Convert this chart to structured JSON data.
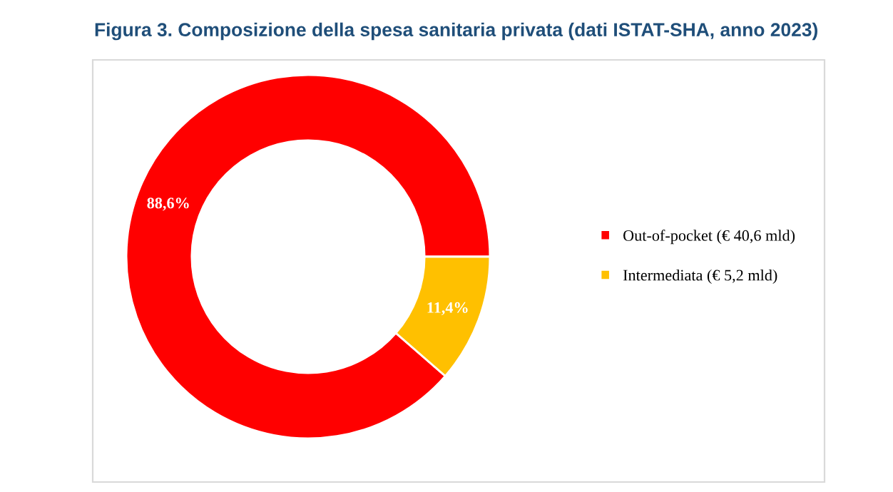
{
  "chart_data": {
    "type": "donut",
    "title": "Figura 3. Composizione della spesa sanitaria privata (dati ISTAT-SHA, anno 2023)",
    "categories": [
      "Out-of-pocket (€ 40,6 mld)",
      "Intermediata (€ 5,2 mld)"
    ],
    "values": [
      88.6,
      11.4
    ],
    "colors": [
      "#ff0000",
      "#ffc000"
    ],
    "value_labels": [
      "88,6%",
      "11,4%"
    ],
    "legend": "right"
  }
}
